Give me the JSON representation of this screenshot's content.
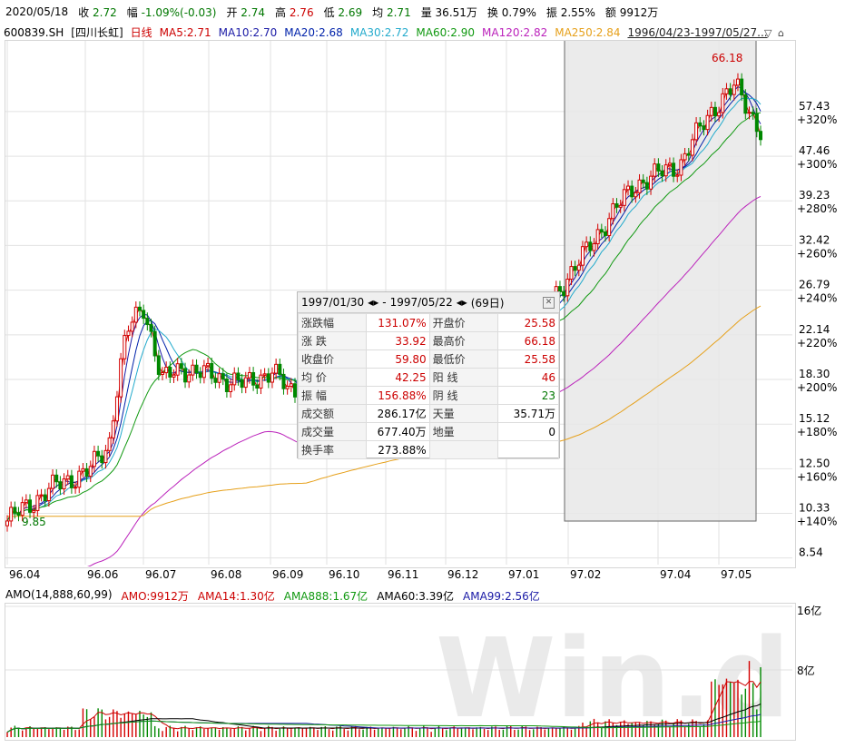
{
  "topbar": {
    "date": "2020/05/18",
    "close_label": "收",
    "close_value": "2.72",
    "change_label": "幅",
    "change_value": "-1.09%(-0.03)",
    "open_label": "开",
    "open_value": "2.74",
    "high_label": "高",
    "high_value": "2.76",
    "low_label": "低",
    "low_value": "2.69",
    "avg_label": "均",
    "avg_value": "2.71",
    "vol_label": "量",
    "vol_value": "36.51万",
    "turnover_label": "换",
    "turnover_value": "0.79%",
    "amp_label": "振",
    "amp_value": "2.55%",
    "amount_label": "额",
    "amount_value": "9912万"
  },
  "legend": {
    "code": "600839.SH",
    "name": "[四川长虹]",
    "period": "日线",
    "ma5": "MA5:2.71",
    "ma10": "MA10:2.70",
    "ma20": "MA20:2.68",
    "ma30": "MA30:2.72",
    "ma60": "MA60:2.90",
    "ma120": "MA120:2.82",
    "ma250": "MA250:2.84",
    "range": "1996/04/23-1997/05/27..."
  },
  "colors": {
    "up": "#d40000",
    "down": "#008800",
    "ma5": "#cc0000",
    "ma10": "#1a1aa6",
    "ma20": "#0022aa",
    "ma30": "#22aacc",
    "ma60": "#119911",
    "ma120": "#bb22bb",
    "ma250": "#e6a01a",
    "grid": "#e2e2e2"
  },
  "popup": {
    "start": "1997/01/30",
    "sep": "-",
    "end": "1997/05/22",
    "days": "(69日)",
    "rows": [
      {
        "l1": "涨跌幅",
        "v1": "131.07%",
        "l2": "开盘价",
        "v2": "25.58"
      },
      {
        "l1": "涨  跌",
        "v1": "33.92",
        "l2": "最高价",
        "v2": "66.18"
      },
      {
        "l1": "收盘价",
        "v1": "59.80",
        "l2": "最低价",
        "v2": "25.58"
      },
      {
        "l1": "均  价",
        "v1": "42.25",
        "l2": "阳  线",
        "v2": "46"
      },
      {
        "l1": "振  幅",
        "v1": "156.88%",
        "l2": "阴  线",
        "v2": "23"
      },
      {
        "l1": "成交额",
        "v1": "286.17亿",
        "l2": "天量",
        "v2": "35.71万"
      },
      {
        "l1": "成交量",
        "v1": "677.40万",
        "l2": "地量",
        "v2": "0"
      },
      {
        "l1": "换手率",
        "v1": "273.88%",
        "l2": "",
        "v2": ""
      }
    ]
  },
  "amo_legend": {
    "title": "AMO(14,888,60,99)",
    "amo": "AMO:9912万",
    "ama14": "AMA14:1.30亿",
    "ama888": "AMA888:1.67亿",
    "ama60": "AMA60:3.39亿",
    "ama99": "AMA99:2.56亿"
  },
  "chart_data": {
    "type": "line",
    "title": "",
    "x_ticks": [
      "96.04",
      "96.06",
      "96.07",
      "96.08",
      "96.09",
      "96.10",
      "96.11",
      "96.12",
      "97.01",
      "97.02",
      "97.04",
      "97.05"
    ],
    "y_ticks": [
      {
        "price": 57.43,
        "pct": "+320%"
      },
      {
        "price": 47.46,
        "pct": "+300%"
      },
      {
        "price": 39.23,
        "pct": "+280%"
      },
      {
        "price": 32.42,
        "pct": "+260%"
      },
      {
        "price": 26.79,
        "pct": "+240%"
      },
      {
        "price": 22.14,
        "pct": "+220%"
      },
      {
        "price": 18.3,
        "pct": "+200%"
      },
      {
        "price": 15.12,
        "pct": "+180%"
      },
      {
        "price": 12.5,
        "pct": "+160%"
      },
      {
        "price": 10.33,
        "pct": "+140%"
      },
      {
        "price": 8.54,
        "pct": ""
      }
    ],
    "y_scale": "log",
    "ylim": [
      8.3,
      75
    ],
    "annotations": {
      "high": "66.18",
      "low": "9.85"
    },
    "price_close": [
      {
        "x": "96.04",
        "y": 10.0
      },
      {
        "x": "96.04b",
        "y": 11.6
      },
      {
        "x": "96.05",
        "y": 12.4
      },
      {
        "x": "96.05b",
        "y": 13.8
      },
      {
        "x": "96.06",
        "y": 22.5
      },
      {
        "x": "96.06b",
        "y": 25.0
      },
      {
        "x": "96.07",
        "y": 18.2
      },
      {
        "x": "96.07b",
        "y": 19.2
      },
      {
        "x": "96.08",
        "y": 18.5
      },
      {
        "x": "96.08b",
        "y": 17.9
      },
      {
        "x": "96.09",
        "y": 19.0
      },
      {
        "x": "96.09b",
        "y": 17.4
      },
      {
        "x": "96.10",
        "y": 17.6
      },
      {
        "x": "96.11",
        "y": 18.6
      },
      {
        "x": "96.12",
        "y": 22.0
      },
      {
        "x": "97.01",
        "y": 23.0
      },
      {
        "x": "97.02",
        "y": 30.5
      },
      {
        "x": "97.03",
        "y": 42.0
      },
      {
        "x": "97.04",
        "y": 46.0
      },
      {
        "x": "97.04b",
        "y": 58.0
      },
      {
        "x": "97.05",
        "y": 64.0
      },
      {
        "x": "97.05b",
        "y": 52.0
      }
    ],
    "amo_ticks": [
      "16亿",
      "8亿"
    ],
    "amo_ylim": [
      0,
      16
    ]
  }
}
